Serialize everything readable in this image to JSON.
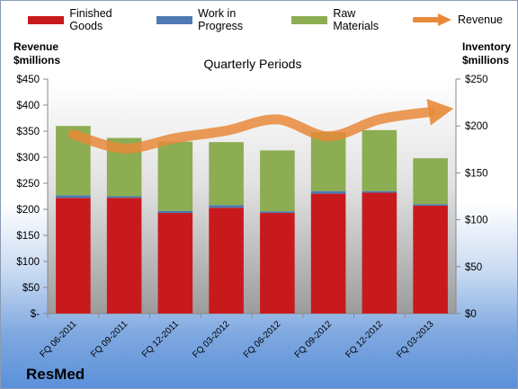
{
  "chart_data": {
    "type": "bar",
    "stacked": true,
    "title": "Quarterly Periods",
    "categories": [
      "FQ 06-2011",
      "FQ 09-2011",
      "FQ 12-2011",
      "FQ 03-2012",
      "FQ 06-2012",
      "FQ 09-2012",
      "FQ 12-2012",
      "FQ 03-2013"
    ],
    "series": [
      {
        "name": "Finished Goods",
        "color": "#c81a1d",
        "axis": "left",
        "values": [
          222,
          222,
          193,
          203,
          193,
          230,
          232,
          207
        ]
      },
      {
        "name": "Work in Progress",
        "color": "#4d79b4",
        "axis": "left",
        "values": [
          5,
          3,
          4,
          5,
          3,
          5,
          3,
          3
        ]
      },
      {
        "name": "Raw Materials",
        "color": "#8cad51",
        "axis": "left",
        "values": [
          133,
          112,
          133,
          121,
          117,
          113,
          117,
          88
        ]
      },
      {
        "name": "Revenue",
        "type": "line",
        "color": "#e88a3a",
        "axis": "right",
        "values": [
          191,
          176,
          187,
          195,
          207,
          189,
          207,
          215
        ]
      }
    ],
    "left_axis": {
      "label": [
        "Revenue",
        "$millions"
      ],
      "ticks": [
        "$-",
        "$50",
        "$100",
        "$150",
        "$200",
        "$250",
        "$300",
        "$350",
        "$400",
        "$450"
      ],
      "ylim": [
        0,
        450
      ]
    },
    "right_axis": {
      "label": [
        "Inventory",
        "$millions"
      ],
      "ticks": [
        "$0",
        "$50",
        "$100",
        "$150",
        "$200",
        "$250"
      ],
      "ylim": [
        0,
        250
      ]
    },
    "grid": false,
    "legend_position": "top"
  },
  "brand": "ResMed"
}
